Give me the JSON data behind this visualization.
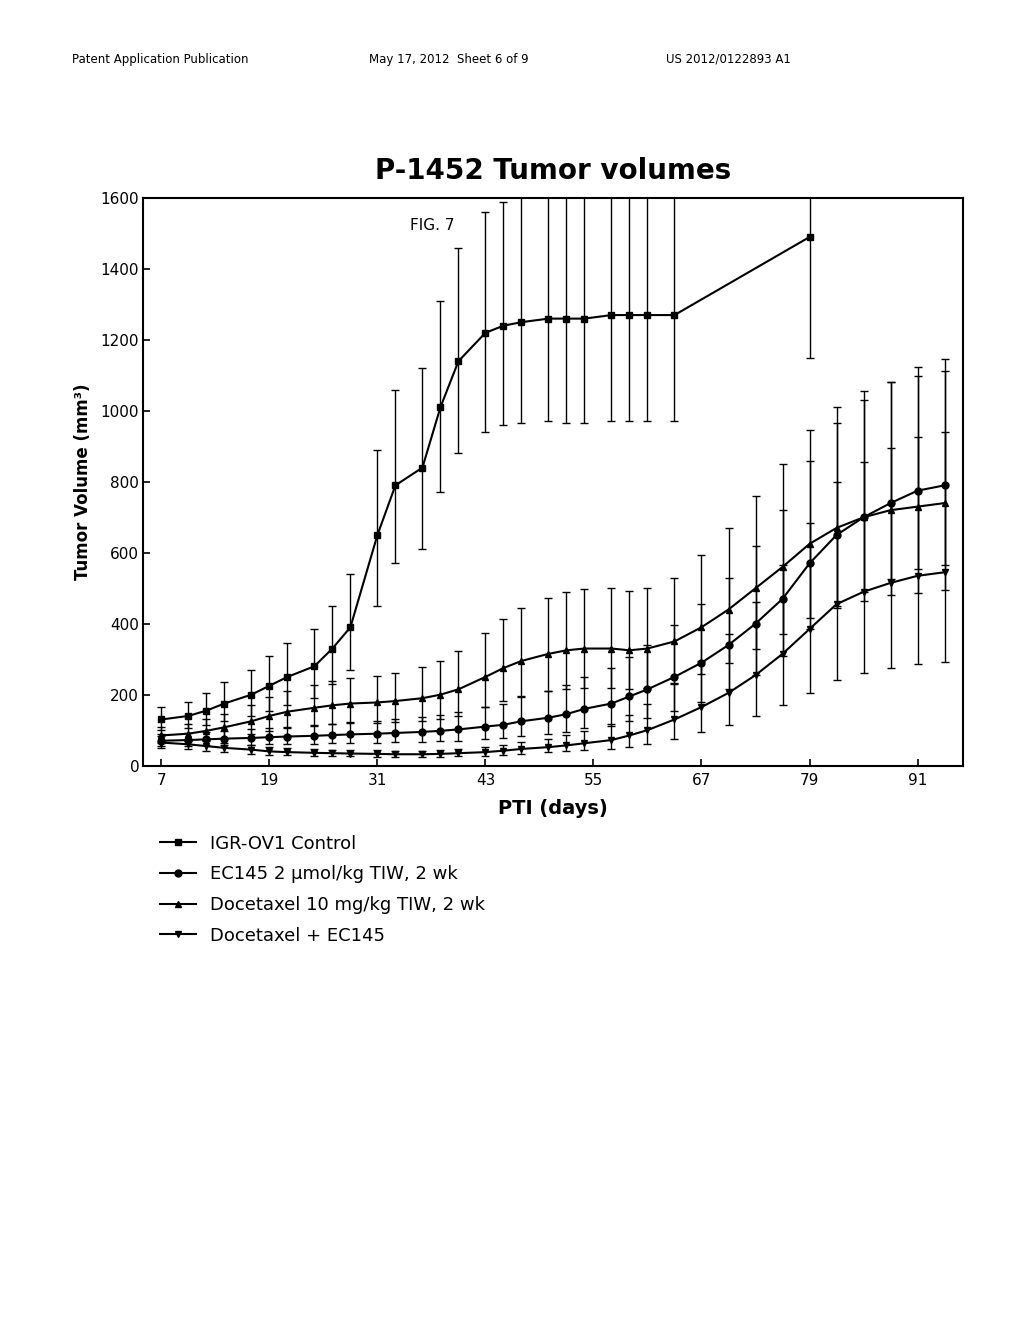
{
  "title": "P-1452 Tumor volumes",
  "fig_label": "FIG. 7",
  "xlabel": "PTI (days)",
  "ylabel": "Tumor Volume (mm³)",
  "xticks": [
    7,
    19,
    31,
    43,
    55,
    67,
    79,
    91
  ],
  "ylim": [
    0,
    1600
  ],
  "yticks": [
    0,
    200,
    400,
    600,
    800,
    1000,
    1200,
    1400,
    1600
  ],
  "header_left": "Patent Application Publication",
  "header_mid": "May 17, 2012  Sheet 6 of 9",
  "header_right": "US 2012/0122893 A1",
  "series1_name": "IGR-OV1 Control",
  "series1_x": [
    7,
    10,
    12,
    14,
    17,
    19,
    21,
    24,
    26,
    28,
    31,
    33,
    36,
    38,
    40,
    43,
    45,
    47,
    50,
    52,
    54,
    57,
    59,
    61,
    64,
    79
  ],
  "series1_y": [
    130,
    140,
    155,
    175,
    200,
    225,
    250,
    280,
    330,
    390,
    650,
    790,
    840,
    1010,
    1140,
    1220,
    1240,
    1250,
    1260,
    1260,
    1260,
    1270,
    1270,
    1270,
    1270,
    1490
  ],
  "series1_yerr_lo": [
    30,
    35,
    40,
    50,
    60,
    70,
    80,
    90,
    100,
    120,
    200,
    220,
    230,
    240,
    260,
    280,
    280,
    285,
    290,
    295,
    295,
    300,
    300,
    300,
    300,
    340
  ],
  "series1_yerr_hi": [
    35,
    40,
    50,
    60,
    70,
    85,
    95,
    105,
    120,
    150,
    240,
    270,
    280,
    300,
    320,
    340,
    350,
    355,
    360,
    360,
    360,
    365,
    365,
    365,
    365,
    370
  ],
  "series2_name": "EC145 2 μmol/kg TIW, 2 wk",
  "series2_x": [
    7,
    10,
    12,
    14,
    17,
    19,
    21,
    24,
    26,
    28,
    31,
    33,
    36,
    38,
    40,
    43,
    45,
    47,
    50,
    52,
    54,
    57,
    59,
    61,
    64,
    67,
    70,
    73,
    76,
    79,
    82,
    85,
    88,
    91,
    94
  ],
  "series2_y": [
    70,
    72,
    74,
    76,
    78,
    80,
    82,
    84,
    86,
    88,
    90,
    92,
    95,
    98,
    102,
    110,
    115,
    125,
    135,
    145,
    160,
    175,
    195,
    215,
    250,
    290,
    340,
    400,
    470,
    570,
    650,
    700,
    740,
    775,
    790
  ],
  "series2_yerr_lo": [
    15,
    16,
    17,
    18,
    19,
    20,
    21,
    22,
    23,
    24,
    25,
    26,
    28,
    30,
    32,
    35,
    38,
    42,
    46,
    50,
    55,
    62,
    70,
    80,
    95,
    110,
    125,
    145,
    160,
    185,
    200,
    210,
    215,
    220,
    225
  ],
  "series2_yerr_hi": [
    18,
    19,
    20,
    22,
    24,
    26,
    28,
    30,
    32,
    34,
    36,
    38,
    42,
    46,
    50,
    55,
    60,
    68,
    75,
    82,
    90,
    100,
    112,
    125,
    145,
    165,
    190,
    220,
    250,
    290,
    315,
    330,
    340,
    350,
    355
  ],
  "series3_name": "Docetaxel 10 mg/kg TIW, 2 wk",
  "series3_x": [
    7,
    10,
    12,
    14,
    17,
    19,
    21,
    24,
    26,
    28,
    31,
    33,
    36,
    38,
    40,
    43,
    45,
    47,
    50,
    52,
    54,
    57,
    59,
    61,
    64,
    67,
    70,
    73,
    76,
    79,
    82,
    85,
    88,
    91,
    94
  ],
  "series3_y": [
    85,
    90,
    98,
    108,
    125,
    140,
    152,
    163,
    170,
    175,
    178,
    182,
    190,
    200,
    215,
    250,
    275,
    295,
    315,
    325,
    330,
    330,
    325,
    330,
    350,
    390,
    440,
    500,
    560,
    625,
    670,
    700,
    720,
    730,
    740
  ],
  "series3_yerr_lo": [
    20,
    22,
    25,
    30,
    36,
    42,
    46,
    50,
    53,
    55,
    57,
    60,
    64,
    68,
    74,
    85,
    92,
    98,
    105,
    108,
    110,
    110,
    108,
    110,
    118,
    132,
    150,
    170,
    190,
    210,
    225,
    235,
    240,
    243,
    245
  ],
  "series3_yerr_hi": [
    25,
    28,
    32,
    38,
    45,
    52,
    58,
    64,
    68,
    72,
    75,
    80,
    88,
    96,
    108,
    125,
    138,
    148,
    158,
    165,
    168,
    170,
    168,
    170,
    180,
    205,
    230,
    260,
    290,
    320,
    340,
    355,
    362,
    368,
    372
  ],
  "series4_name": "Docetaxel + EC145",
  "series4_x": [
    7,
    10,
    12,
    14,
    17,
    19,
    21,
    24,
    26,
    28,
    31,
    33,
    36,
    38,
    40,
    43,
    45,
    47,
    50,
    52,
    54,
    57,
    59,
    61,
    64,
    67,
    70,
    73,
    76,
    79,
    82,
    85,
    88,
    91,
    94
  ],
  "series4_y": [
    65,
    60,
    55,
    50,
    45,
    40,
    38,
    36,
    35,
    34,
    33,
    32,
    32,
    33,
    35,
    38,
    42,
    47,
    52,
    57,
    63,
    72,
    85,
    100,
    130,
    165,
    205,
    255,
    315,
    385,
    455,
    490,
    515,
    535,
    545
  ],
  "series4_yerr_lo": [
    15,
    14,
    13,
    12,
    11,
    10,
    9,
    8,
    8,
    8,
    8,
    8,
    8,
    8,
    9,
    10,
    11,
    13,
    15,
    17,
    20,
    25,
    32,
    40,
    55,
    70,
    90,
    115,
    145,
    180,
    215,
    230,
    240,
    248,
    252
  ],
  "series4_yerr_hi": [
    18,
    16,
    15,
    14,
    13,
    12,
    11,
    10,
    10,
    10,
    10,
    10,
    10,
    10,
    12,
    14,
    16,
    20,
    24,
    28,
    34,
    44,
    58,
    75,
    100,
    130,
    165,
    205,
    250,
    300,
    345,
    365,
    380,
    390,
    395
  ],
  "color": "#000000",
  "linewidth": 1.5,
  "markersize": 5,
  "capsize": 3,
  "elinewidth": 1.0
}
